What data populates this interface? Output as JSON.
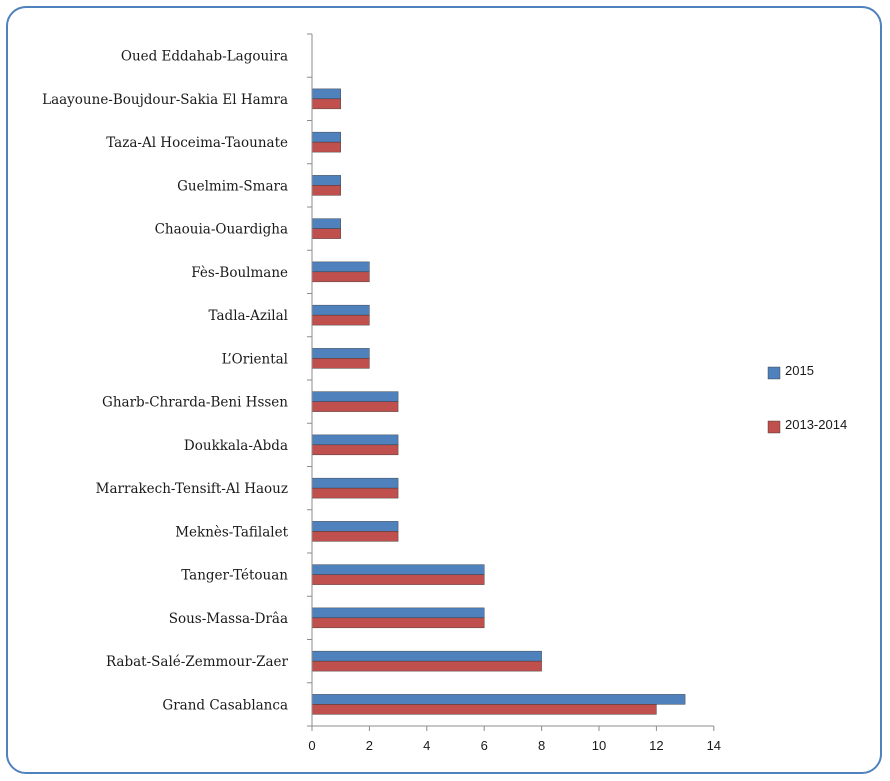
{
  "chart_data": {
    "type": "bar",
    "orientation": "horizontal",
    "categories": [
      "Oued Eddahab-Lagouira",
      "Laayoune-Boujdour-Sakia El Hamra",
      "Taza-Al Hoceima-Taounate",
      "Guelmim-Smara",
      "Chaouia-Ouardigha",
      "Fès-Boulmane",
      "Tadla-Azilal",
      "L’Oriental",
      "Gharb-Chrarda-Beni Hssen",
      "Doukkala-Abda",
      "Marrakech-Tensift-Al Haouz",
      "Meknès-Tafilalet",
      "Tanger-Tétouan",
      "Sous-Massa-Drâa",
      "Rabat-Salé-Zemmour-Zaer",
      "Grand Casablanca"
    ],
    "series": [
      {
        "name": "2015",
        "color": "#4f81bd",
        "values": [
          0,
          1,
          1,
          1,
          1,
          2,
          2,
          2,
          3,
          3,
          3,
          3,
          6,
          6,
          8,
          13
        ]
      },
      {
        "name": "2013-2014",
        "color": "#c0504d",
        "values": [
          0,
          1,
          1,
          1,
          1,
          2,
          2,
          2,
          3,
          3,
          3,
          3,
          6,
          6,
          8,
          12
        ]
      }
    ],
    "xlim": [
      0,
      14
    ],
    "xticks": [
      "0",
      "2",
      "4",
      "6",
      "8",
      "10",
      "12",
      "14"
    ],
    "grid": false,
    "legend_position": "right"
  }
}
